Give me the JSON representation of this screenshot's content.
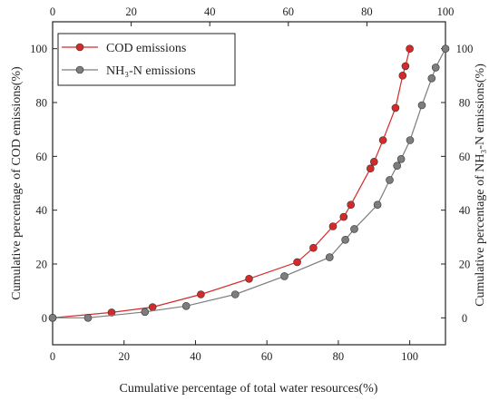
{
  "chart_data": {
    "type": "scatter",
    "title": "",
    "xlabel": "Cumulative percentage of total water resources(%)",
    "ylabel": "Cumulative percentage of COD emissions(%)",
    "ylabel_right": "Cumulative percentage of NH₃-N emissions(%)",
    "x_bottom": {
      "lim": [
        0,
        110
      ],
      "ticks": [
        "0",
        "20",
        "40",
        "60",
        "80",
        "100"
      ],
      "tick_values": [
        0,
        20,
        40,
        60,
        80,
        100
      ]
    },
    "x_top": {
      "lim": [
        0,
        100
      ],
      "ticks": [
        "0",
        "20",
        "40",
        "60",
        "80",
        "100"
      ],
      "tick_values": [
        0,
        20,
        40,
        60,
        80,
        100
      ]
    },
    "y_left": {
      "lim": [
        -10,
        110
      ],
      "ticks": [
        "0",
        "20",
        "40",
        "60",
        "80",
        "100"
      ],
      "tick_values": [
        0,
        20,
        40,
        60,
        80,
        100
      ]
    },
    "y_right": {
      "lim": [
        -10,
        110
      ],
      "ticks": [
        "0",
        "20",
        "40",
        "60",
        "80",
        "100"
      ],
      "tick_values": [
        0,
        20,
        40,
        60,
        80,
        100
      ]
    },
    "grid": false,
    "legend_position": "top-left",
    "series": [
      {
        "name": "COD emissions",
        "color": "#d42a2a",
        "x_axis": "bottom",
        "y_axis": "left",
        "points": [
          [
            0,
            0
          ],
          [
            16.5,
            2
          ],
          [
            28,
            4
          ],
          [
            41.5,
            8.7
          ],
          [
            55,
            14.5
          ],
          [
            68.5,
            20.7
          ],
          [
            73,
            26
          ],
          [
            78.5,
            34
          ],
          [
            81.5,
            37.5
          ],
          [
            83.5,
            42
          ],
          [
            89,
            55.5
          ],
          [
            90,
            58
          ],
          [
            92.5,
            66
          ],
          [
            96,
            78
          ],
          [
            98,
            90
          ],
          [
            98.8,
            93.5
          ],
          [
            100,
            100
          ]
        ]
      },
      {
        "name": "NH₃-N emissions",
        "color": "#7d7d7d",
        "x_axis": "top",
        "y_axis": "right",
        "points": [
          [
            0,
            0
          ],
          [
            9,
            0
          ],
          [
            23.5,
            2.2
          ],
          [
            34,
            4.4
          ],
          [
            46.5,
            8.7
          ],
          [
            59,
            15.5
          ],
          [
            70.5,
            22.5
          ],
          [
            74.5,
            29
          ],
          [
            76.8,
            33
          ],
          [
            82.7,
            42
          ],
          [
            85.8,
            51.2
          ],
          [
            87.7,
            56.5
          ],
          [
            88.7,
            59
          ],
          [
            91,
            66
          ],
          [
            94,
            79
          ],
          [
            96.5,
            89
          ],
          [
            97.5,
            93
          ],
          [
            100,
            100
          ]
        ]
      }
    ]
  }
}
